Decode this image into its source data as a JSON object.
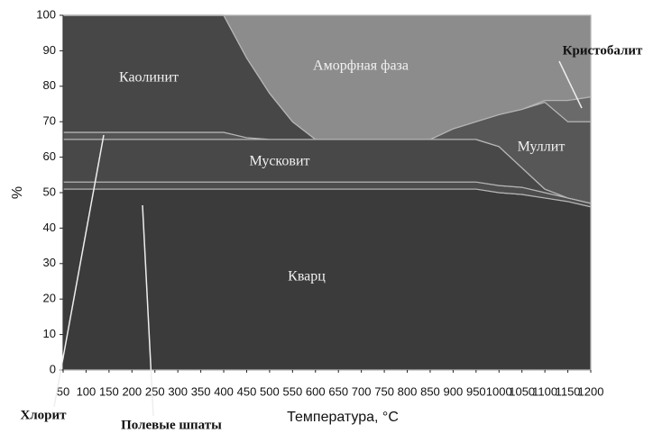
{
  "chart_data": {
    "type": "stacked_area",
    "x_label": "Температура, °C",
    "y_label": "%",
    "x": [
      50,
      100,
      150,
      200,
      250,
      300,
      350,
      400,
      450,
      500,
      550,
      600,
      650,
      700,
      750,
      800,
      850,
      900,
      950,
      1000,
      1050,
      1100,
      1150,
      1200
    ],
    "xlim": [
      50,
      1200
    ],
    "xticks": [
      50,
      100,
      150,
      200,
      250,
      300,
      350,
      400,
      450,
      500,
      550,
      600,
      650,
      700,
      750,
      800,
      850,
      900,
      950,
      1000,
      1050,
      1100,
      1150,
      1200
    ],
    "ylim": [
      0,
      100
    ],
    "yticks": [
      0,
      10,
      20,
      30,
      40,
      50,
      60,
      70,
      80,
      90,
      100
    ],
    "series": [
      {
        "name": "Кварц",
        "color": "#3b3b3b",
        "values": [
          51,
          51,
          51,
          51,
          51,
          51,
          51,
          51,
          51,
          51,
          51,
          51,
          51,
          51,
          51,
          51,
          51,
          51,
          51,
          50,
          49.5,
          48.5,
          47.5,
          46
        ]
      },
      {
        "name": "Полевые шпаты",
        "color": "#4d4d4d",
        "values": [
          2,
          2,
          2,
          2,
          2,
          2,
          2,
          2,
          2,
          2,
          2,
          2,
          2,
          2,
          2,
          2,
          2,
          2,
          2,
          2,
          2,
          1.5,
          1,
          1
        ]
      },
      {
        "name": "Мусковит",
        "color": "#484848",
        "values": [
          12,
          12,
          12,
          12,
          12,
          12,
          12,
          12,
          12,
          12,
          12,
          12,
          12,
          12,
          12,
          12,
          12,
          12,
          12,
          11,
          5.5,
          1,
          0,
          0
        ]
      },
      {
        "name": "Хлорит",
        "color": "#555555",
        "values": [
          2,
          2,
          2,
          2,
          2,
          2,
          2,
          2,
          0.5,
          0,
          0,
          0,
          0,
          0,
          0,
          0,
          0,
          0,
          0,
          0,
          0,
          0,
          0,
          0
        ]
      },
      {
        "name": "Каолинит",
        "color": "#474747",
        "values": [
          33,
          33,
          33,
          33,
          33,
          33,
          33,
          33,
          22.5,
          13,
          5,
          0,
          0,
          0,
          0,
          0,
          0,
          0,
          0,
          0,
          0,
          0,
          0,
          0
        ]
      },
      {
        "name": "Муллит",
        "color": "#575757",
        "values": [
          0,
          0,
          0,
          0,
          0,
          0,
          0,
          0,
          0,
          0,
          0,
          0,
          0,
          0,
          0,
          0,
          0,
          3,
          5,
          9,
          16.5,
          24.5,
          21.5,
          23
        ]
      },
      {
        "name": "Кристобалит",
        "color": "#6a6a6a",
        "values": [
          0,
          0,
          0,
          0,
          0,
          0,
          0,
          0,
          0,
          0,
          0,
          0,
          0,
          0,
          0,
          0,
          0,
          0,
          0,
          0,
          0,
          0.5,
          6,
          7
        ]
      },
      {
        "name": "Аморфная фаза",
        "color": "#8c8c8c",
        "values": [
          0,
          0,
          0,
          0,
          0,
          0,
          0,
          0,
          12,
          22,
          30,
          35,
          35,
          35,
          35,
          35,
          35,
          32,
          30,
          28,
          26.5,
          24,
          24,
          23
        ]
      }
    ]
  }
}
